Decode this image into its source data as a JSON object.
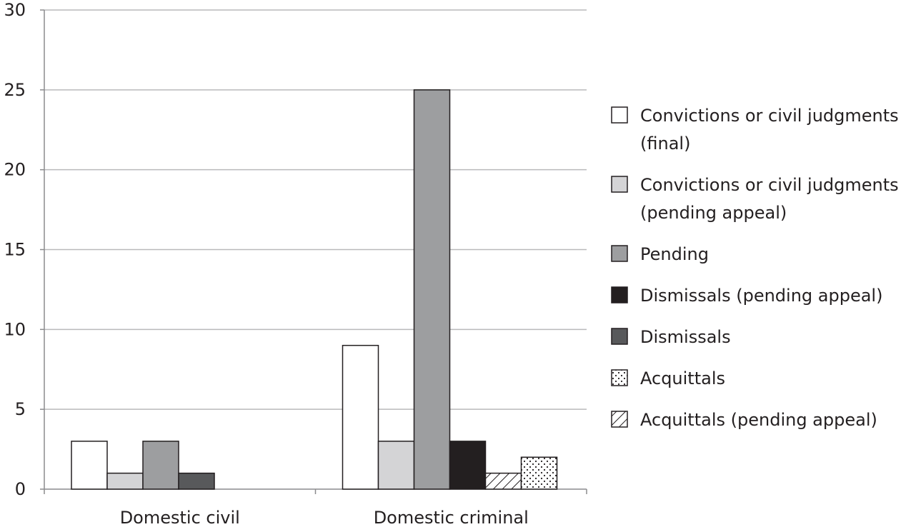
{
  "chart_data": {
    "type": "bar",
    "categories": [
      "Domestic civil",
      "Domestic criminal"
    ],
    "ylim": [
      0,
      30
    ],
    "yticks": [
      0,
      5,
      10,
      15,
      20,
      25,
      30
    ],
    "grid": true,
    "legend_position": "right",
    "series": [
      {
        "name": "Convictions or civil judgments (final)",
        "legend_lines": [
          "Convictions or civil judgments",
          "(final)"
        ],
        "values": [
          3,
          9
        ],
        "fill": "#ffffff",
        "pattern": "none"
      },
      {
        "name": "Convictions or civil judgments (pending appeal)",
        "legend_lines": [
          "Convictions or civil judgments",
          "(pending appeal)"
        ],
        "values": [
          1,
          3
        ],
        "fill": "#d4d4d6",
        "pattern": "none"
      },
      {
        "name": "Pending",
        "legend_lines": [
          "Pending"
        ],
        "values": [
          3,
          25
        ],
        "fill": "#9d9ea0",
        "pattern": "none"
      },
      {
        "name": "Dismissals (pending appeal)",
        "legend_lines": [
          "Dismissals (pending appeal)"
        ],
        "values": [
          0,
          3
        ],
        "fill": "#231f20",
        "pattern": "none"
      },
      {
        "name": "Dismissals",
        "legend_lines": [
          "Dismissals"
        ],
        "values": [
          1,
          0
        ],
        "fill": "#58595b",
        "pattern": "none"
      },
      {
        "name": "Acquittals",
        "legend_lines": [
          "Acquittals"
        ],
        "values": [
          0,
          2
        ],
        "fill": "#ffffff",
        "pattern": "dots"
      },
      {
        "name": "Acquittals (pending appeal)",
        "legend_lines": [
          "Acquittals (pending appeal)"
        ],
        "values": [
          0,
          1
        ],
        "fill": "#ffffff",
        "pattern": "hatch"
      }
    ],
    "bar_order": [
      [
        "Convictions or civil judgments (final)",
        "Convictions or civil judgments (pending appeal)",
        "Pending",
        "Dismissals"
      ],
      [
        "Convictions or civil judgments (final)",
        "Convictions or civil judgments (pending appeal)",
        "Pending",
        "Dismissals (pending appeal)",
        "Acquittals (pending appeal)",
        "Acquittals"
      ]
    ]
  }
}
